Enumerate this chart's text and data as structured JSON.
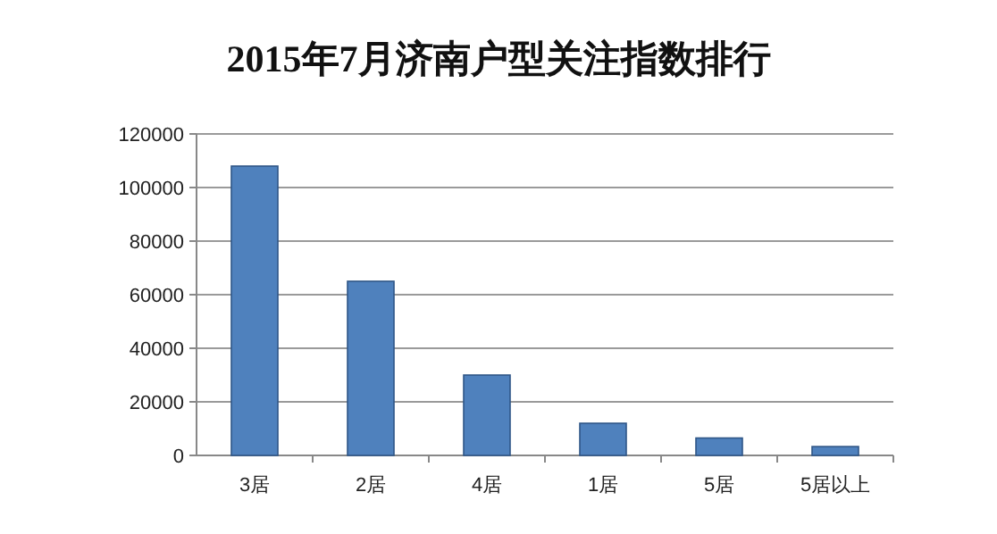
{
  "chart_data": {
    "type": "bar",
    "title": "2015年7月济南户型关注指数排行",
    "categories": [
      "3居",
      "2居",
      "4居",
      "1居",
      "5居",
      "5居以上"
    ],
    "values": [
      108000,
      65000,
      30000,
      12000,
      6500,
      3300
    ],
    "color": "#4f81bd",
    "ylim": [
      0,
      120000
    ],
    "yticks": [
      0,
      20000,
      40000,
      60000,
      80000,
      100000,
      120000
    ],
    "grid": "y"
  }
}
